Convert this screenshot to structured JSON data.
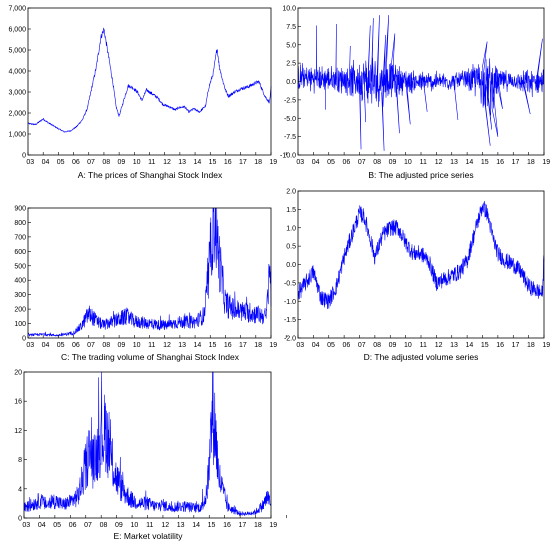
{
  "chart_data": [
    {
      "id": "A",
      "type": "line",
      "title": "A: The prices of Shanghai Stock Index",
      "x_ticks": [
        "03",
        "04",
        "05",
        "06",
        "07",
        "08",
        "09",
        "10",
        "11",
        "12",
        "13",
        "14",
        "15",
        "16",
        "17",
        "18",
        "19"
      ],
      "xlim": [
        2003,
        2019
      ],
      "ylim": [
        0,
        7000
      ],
      "y_ticks": [
        0,
        1000,
        2000,
        3000,
        4000,
        5000,
        6000,
        7000
      ],
      "y_tick_labels": [
        "0",
        "1,000",
        "2,000",
        "3,000",
        "4,000",
        "5,000",
        "6,000",
        "7,000"
      ],
      "color": "#0000ff",
      "noise": 0.025,
      "x": [
        2003.0,
        2003.5,
        2004.0,
        2004.3,
        2004.7,
        2005.0,
        2005.4,
        2005.8,
        2006.2,
        2006.6,
        2006.9,
        2007.2,
        2007.5,
        2007.8,
        2008.0,
        2008.3,
        2008.6,
        2008.8,
        2009.0,
        2009.3,
        2009.6,
        2009.9,
        2010.2,
        2010.5,
        2010.8,
        2011.2,
        2011.5,
        2011.9,
        2012.3,
        2012.7,
        2012.9,
        2013.3,
        2013.6,
        2013.9,
        2014.3,
        2014.7,
        2014.9,
        2015.2,
        2015.45,
        2015.6,
        2015.8,
        2016.0,
        2016.2,
        2016.6,
        2017.0,
        2017.5,
        2017.9,
        2018.2,
        2018.6,
        2018.9,
        2019.0
      ],
      "values": [
        1500,
        1450,
        1720,
        1550,
        1380,
        1250,
        1100,
        1150,
        1350,
        1700,
        2200,
        3200,
        4200,
        5600,
        6000,
        4700,
        3400,
        2300,
        1850,
        2600,
        3300,
        3200,
        3000,
        2600,
        3100,
        2900,
        2750,
        2400,
        2300,
        2150,
        2250,
        2300,
        2050,
        2200,
        2050,
        2350,
        3200,
        3900,
        5100,
        4200,
        3600,
        3100,
        2800,
        3000,
        3150,
        3250,
        3400,
        3500,
        2800,
        2500,
        3200
      ]
    },
    {
      "id": "B",
      "type": "line",
      "title": "B: The adjusted price series",
      "x_ticks": [
        "03",
        "04",
        "05",
        "06",
        "07",
        "08",
        "09",
        "10",
        "11",
        "12",
        "13",
        "14",
        "15",
        "16",
        "17",
        "18",
        "19"
      ],
      "xlim": [
        2003,
        2019
      ],
      "ylim": [
        -10,
        10
      ],
      "y_ticks": [
        -10,
        -7.5,
        -5,
        -2.5,
        0,
        2.5,
        5,
        7.5,
        10
      ],
      "y_tick_labels": [
        "-10.0",
        "-7.5",
        "-5.0",
        "-2.5",
        "0.0",
        "2.5",
        "5.0",
        "7.5",
        "10.0"
      ],
      "color": "#0000ff",
      "noise": 1,
      "x": [
        2003.0,
        2004.0,
        2005.0,
        2006.0,
        2007.0,
        2007.5,
        2008.0,
        2008.5,
        2009.0,
        2010.0,
        2011.0,
        2012.0,
        2013.0,
        2014.0,
        2015.0,
        2015.5,
        2016.0,
        2017.0,
        2018.0,
        2019.0
      ],
      "values": [
        0.5,
        0.4,
        0.3,
        0.3,
        0.2,
        0.1,
        -0.2,
        0.0,
        0.3,
        0.1,
        -0.1,
        0.0,
        0.0,
        0.2,
        0.2,
        -0.6,
        0.0,
        0.1,
        -0.2,
        0.1
      ],
      "band": [
        1.6,
        1.5,
        1.4,
        1.6,
        2.2,
        2.8,
        3.0,
        2.6,
        2.0,
        1.4,
        1.2,
        1.1,
        1.0,
        1.2,
        2.8,
        3.4,
        1.6,
        0.8,
        1.5,
        1.4
      ],
      "spikes": [
        [
          2004.2,
          7.6
        ],
        [
          2004.8,
          -3.8
        ],
        [
          2005.5,
          7.8
        ],
        [
          2006.4,
          4.8
        ],
        [
          2007.1,
          -9.2
        ],
        [
          2007.4,
          -5.5
        ],
        [
          2007.7,
          7.6
        ],
        [
          2007.9,
          8.6
        ],
        [
          2008.3,
          9.0
        ],
        [
          2008.6,
          -9.4
        ],
        [
          2008.7,
          6.3
        ],
        [
          2008.9,
          9.0
        ],
        [
          2009.3,
          6.5
        ],
        [
          2009.6,
          -7.0
        ],
        [
          2010.3,
          -5.8
        ],
        [
          2011.4,
          -4.1
        ],
        [
          2013.4,
          -5.2
        ],
        [
          2015.3,
          5.4
        ],
        [
          2015.5,
          -8.7
        ],
        [
          2015.6,
          -6.5
        ],
        [
          2016.0,
          -7.5
        ],
        [
          2016.3,
          -3.7
        ],
        [
          2018.1,
          -4.4
        ],
        [
          2018.9,
          5.8
        ]
      ]
    },
    {
      "id": "C",
      "type": "line",
      "title": "C: The trading volume of Shanghai Stock Index",
      "x_ticks": [
        "03",
        "04",
        "05",
        "06",
        "07",
        "08",
        "09",
        "10",
        "11",
        "12",
        "13",
        "14",
        "15",
        "16",
        "17",
        "18",
        "19"
      ],
      "xlim": [
        2003,
        2019
      ],
      "ylim": [
        0,
        900
      ],
      "y_ticks": [
        0,
        100,
        200,
        300,
        400,
        500,
        600,
        700,
        800,
        900
      ],
      "y_tick_labels": [
        "0",
        "100",
        "200",
        "300",
        "400",
        "500",
        "600",
        "700",
        "800",
        "900"
      ],
      "color": "#0000ff",
      "noise": 0.25,
      "x": [
        2003.0,
        2004.0,
        2005.0,
        2006.0,
        2006.5,
        2007.0,
        2007.3,
        2007.6,
        2008.0,
        2009.0,
        2009.5,
        2010.0,
        2011.0,
        2012.0,
        2013.0,
        2014.0,
        2014.6,
        2014.9,
        2015.1,
        2015.3,
        2015.5,
        2015.8,
        2016.0,
        2016.5,
        2017.0,
        2018.0,
        2018.7,
        2018.9,
        2019.0
      ],
      "values": [
        20,
        25,
        18,
        35,
        80,
        170,
        140,
        110,
        90,
        130,
        150,
        115,
        100,
        85,
        110,
        110,
        160,
        410,
        700,
        830,
        620,
        380,
        240,
        200,
        185,
        165,
        150,
        540,
        260
      ]
    },
    {
      "id": "D",
      "type": "line",
      "title": "D: The adjusted volume series",
      "x_ticks": [
        "03",
        "04",
        "05",
        "06",
        "07",
        "08",
        "09",
        "10",
        "11",
        "12",
        "13",
        "14",
        "15",
        "16",
        "17",
        "18",
        "19"
      ],
      "xlim": [
        2003,
        2019
      ],
      "ylim": [
        -2,
        2
      ],
      "y_ticks": [
        -2,
        -1.5,
        -1,
        -0.5,
        0,
        0.5,
        1,
        1.5,
        2
      ],
      "y_tick_labels": [
        "-2.0",
        "-1.5",
        "-1.0",
        "-0.5",
        "0.0",
        "0.5",
        "1.0",
        "1.5",
        "2.0"
      ],
      "color": "#0000ff",
      "noise": 0.22,
      "x": [
        2003.0,
        2003.5,
        2004.0,
        2004.5,
        2005.0,
        2005.5,
        2006.0,
        2006.5,
        2007.0,
        2007.3,
        2007.7,
        2008.0,
        2008.5,
        2009.0,
        2009.5,
        2010.0,
        2010.5,
        2011.0,
        2011.5,
        2012.0,
        2012.5,
        2013.0,
        2013.5,
        2014.0,
        2014.5,
        2015.0,
        2015.3,
        2015.7,
        2016.0,
        2016.5,
        2017.0,
        2017.5,
        2018.0,
        2018.5,
        2018.9,
        2019.0
      ],
      "values": [
        -0.8,
        -0.5,
        -0.2,
        -0.9,
        -1.0,
        -0.6,
        0.2,
        0.8,
        1.4,
        1.3,
        0.7,
        0.2,
        0.8,
        1.0,
        1.0,
        0.6,
        0.3,
        0.3,
        0.1,
        -0.5,
        -0.4,
        -0.3,
        -0.2,
        0.1,
        0.9,
        1.6,
        1.4,
        0.7,
        0.3,
        0.1,
        0.0,
        -0.2,
        -0.6,
        -0.7,
        -0.8,
        0.3
      ]
    },
    {
      "id": "E",
      "type": "line",
      "title": "E: Market volatility",
      "x_ticks": [
        "03",
        "04",
        "05",
        "06",
        "07",
        "08",
        "09",
        "10",
        "11",
        "12",
        "13",
        "14",
        "15",
        "16",
        "17",
        "18",
        "19"
      ],
      "xlim": [
        2003,
        2019
      ],
      "ylim": [
        0,
        20
      ],
      "y_ticks": [
        0,
        4,
        8,
        12,
        16,
        20
      ],
      "y_tick_labels": [
        "0",
        "4",
        "8",
        "12",
        "16",
        "20"
      ],
      "color": "#0000ff",
      "noise": 0.3,
      "x": [
        2003.0,
        2003.5,
        2004.0,
        2004.5,
        2005.0,
        2005.5,
        2006.0,
        2006.5,
        2006.9,
        2007.2,
        2007.5,
        2007.8,
        2008.0,
        2008.3,
        2008.6,
        2008.9,
        2009.2,
        2009.5,
        2010.0,
        2010.5,
        2011.0,
        2011.5,
        2012.0,
        2012.5,
        2013.0,
        2013.5,
        2014.0,
        2014.5,
        2014.8,
        2015.0,
        2015.2,
        2015.4,
        2015.6,
        2015.9,
        2016.2,
        2016.6,
        2017.0,
        2017.5,
        2018.0,
        2018.5,
        2018.8,
        2019.0
      ],
      "values": [
        1.4,
        1.8,
        2.4,
        1.8,
        2.4,
        1.8,
        2.2,
        3.0,
        6.0,
        9.0,
        7.5,
        9.5,
        11.0,
        12.0,
        8.5,
        6.0,
        4.5,
        3.5,
        2.4,
        2.0,
        2.0,
        1.6,
        1.8,
        1.4,
        1.6,
        1.6,
        1.4,
        1.5,
        3.0,
        7.0,
        15.0,
        12.0,
        6.0,
        3.5,
        1.5,
        1.0,
        0.6,
        0.6,
        0.8,
        1.8,
        3.0,
        1.5
      ]
    }
  ]
}
